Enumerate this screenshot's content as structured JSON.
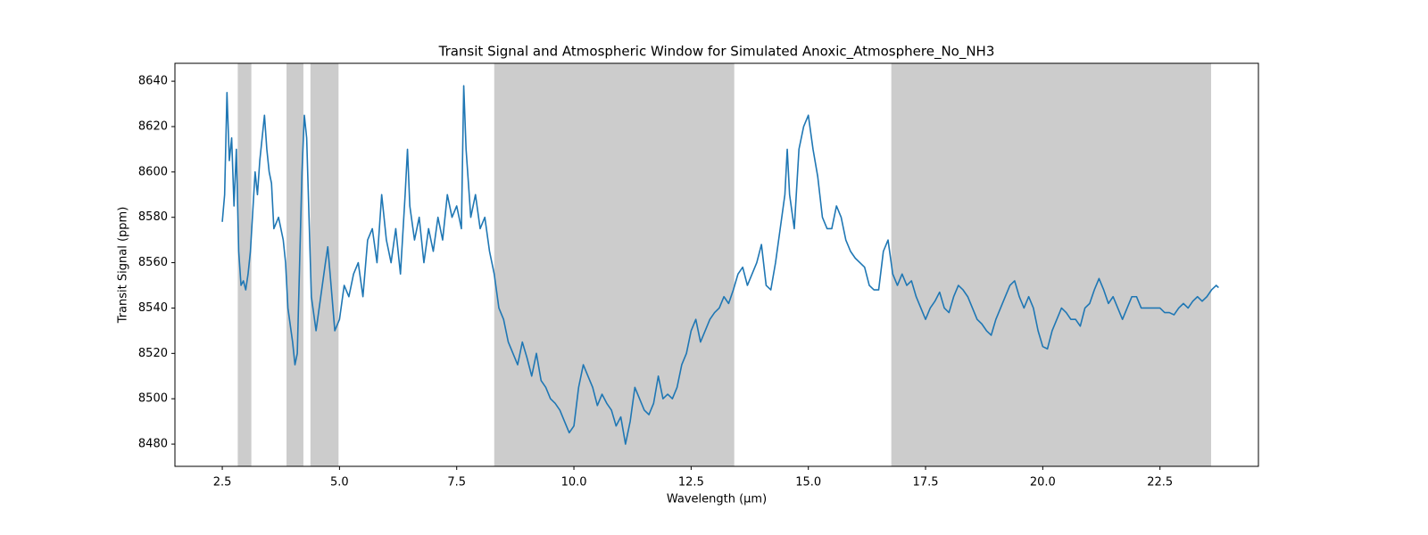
{
  "chart_data": {
    "type": "line",
    "title": "Transit Signal and Atmospheric Window for Simulated Anoxic_Atmosphere_No_NH3",
    "x_label": "Wavelength (μm)",
    "y_label": "Transit Signal (ppm)",
    "color": "#1f77b4",
    "window_color": "#cccccc",
    "windows": [
      [
        2.83,
        3.12
      ],
      [
        3.87,
        4.23
      ],
      [
        4.38,
        4.98
      ],
      [
        8.3,
        13.42
      ],
      [
        16.77,
        23.59
      ]
    ],
    "xlim": [
      1.49,
      24.6
    ],
    "ylim": [
      8470.2,
      8647.9
    ],
    "xticks": [
      2.5,
      {
        "value": 5,
        "label": "5.0"
      },
      7.5,
      {
        "value": 10,
        "label": "10.0"
      },
      12.5,
      {
        "value": 15,
        "label": "15.0"
      },
      17.5,
      {
        "value": 20,
        "label": "20.0"
      },
      22.5
    ],
    "yticks": [
      8480,
      8500,
      8520,
      8540,
      8560,
      8580,
      8600,
      8620,
      8640
    ],
    "x": [
      2.5,
      2.55,
      2.6,
      2.65,
      2.7,
      2.75,
      2.8,
      2.85,
      2.9,
      2.95,
      3.0,
      3.05,
      3.1,
      3.2,
      3.25,
      3.3,
      3.35,
      3.4,
      3.45,
      3.5,
      3.55,
      3.6,
      3.7,
      3.8,
      3.85,
      3.9,
      4.0,
      4.05,
      4.1,
      4.15,
      4.2,
      4.25,
      4.3,
      4.35,
      4.4,
      4.5,
      4.6,
      4.7,
      4.75,
      4.8,
      4.9,
      5.0,
      5.1,
      5.2,
      5.3,
      5.4,
      5.5,
      5.6,
      5.7,
      5.8,
      5.9,
      6.0,
      6.1,
      6.2,
      6.3,
      6.4,
      6.45,
      6.5,
      6.6,
      6.7,
      6.8,
      6.9,
      7.0,
      7.1,
      7.2,
      7.3,
      7.4,
      7.5,
      7.6,
      7.65,
      7.7,
      7.8,
      7.9,
      8.0,
      8.1,
      8.2,
      8.3,
      8.4,
      8.5,
      8.6,
      8.7,
      8.8,
      8.9,
      9.0,
      9.1,
      9.2,
      9.3,
      9.4,
      9.5,
      9.6,
      9.7,
      9.8,
      9.9,
      10.0,
      10.1,
      10.2,
      10.3,
      10.4,
      10.5,
      10.6,
      10.7,
      10.8,
      10.9,
      11.0,
      11.1,
      11.2,
      11.3,
      11.4,
      11.5,
      11.6,
      11.7,
      11.8,
      11.9,
      12.0,
      12.1,
      12.2,
      12.3,
      12.4,
      12.5,
      12.6,
      12.7,
      12.8,
      12.9,
      13.0,
      13.1,
      13.2,
      13.3,
      13.4,
      13.5,
      13.6,
      13.7,
      13.8,
      13.9,
      14.0,
      14.1,
      14.2,
      14.3,
      14.4,
      14.5,
      14.55,
      14.6,
      14.7,
      14.8,
      14.9,
      15.0,
      15.1,
      15.2,
      15.3,
      15.4,
      15.5,
      15.6,
      15.7,
      15.8,
      15.9,
      16.0,
      16.1,
      16.2,
      16.3,
      16.4,
      16.5,
      16.6,
      16.7,
      16.8,
      16.9,
      17.0,
      17.1,
      17.2,
      17.3,
      17.4,
      17.5,
      17.6,
      17.7,
      17.8,
      17.9,
      18.0,
      18.1,
      18.2,
      18.3,
      18.4,
      18.5,
      18.6,
      18.7,
      18.8,
      18.9,
      19.0,
      19.1,
      19.2,
      19.3,
      19.4,
      19.5,
      19.6,
      19.7,
      19.8,
      19.9,
      20.0,
      20.1,
      20.2,
      20.3,
      20.4,
      20.5,
      20.6,
      20.7,
      20.8,
      20.9,
      21.0,
      21.1,
      21.2,
      21.3,
      21.4,
      21.5,
      21.6,
      21.7,
      21.8,
      21.9,
      22.0,
      22.1,
      22.2,
      22.3,
      22.4,
      22.5,
      22.6,
      22.7,
      22.8,
      22.9,
      23.0,
      23.1,
      23.2,
      23.3,
      23.4,
      23.5,
      23.6,
      23.7,
      23.75
    ],
    "values": [
      8578,
      8590,
      8635,
      8605,
      8615,
      8585,
      8610,
      8565,
      8550,
      8552,
      8548,
      8555,
      8565,
      8600,
      8590,
      8605,
      8615,
      8625,
      8610,
      8600,
      8595,
      8575,
      8580,
      8570,
      8560,
      8540,
      8525,
      8515,
      8520,
      8560,
      8600,
      8625,
      8615,
      8580,
      8545,
      8530,
      8545,
      8560,
      8567,
      8555,
      8530,
      8535,
      8550,
      8545,
      8555,
      8560,
      8545,
      8570,
      8575,
      8560,
      8590,
      8570,
      8560,
      8575,
      8555,
      8590,
      8610,
      8585,
      8570,
      8580,
      8560,
      8575,
      8565,
      8580,
      8570,
      8590,
      8580,
      8585,
      8575,
      8638,
      8610,
      8580,
      8590,
      8575,
      8580,
      8565,
      8555,
      8540,
      8535,
      8525,
      8520,
      8515,
      8525,
      8518,
      8510,
      8520,
      8508,
      8505,
      8500,
      8498,
      8495,
      8490,
      8485,
      8488,
      8505,
      8515,
      8510,
      8505,
      8497,
      8502,
      8498,
      8495,
      8488,
      8492,
      8480,
      8490,
      8505,
      8500,
      8495,
      8493,
      8498,
      8510,
      8500,
      8502,
      8500,
      8505,
      8515,
      8520,
      8530,
      8535,
      8525,
      8530,
      8535,
      8538,
      8540,
      8545,
      8542,
      8548,
      8555,
      8558,
      8550,
      8555,
      8560,
      8568,
      8550,
      8548,
      8560,
      8575,
      8590,
      8610,
      8590,
      8575,
      8610,
      8620,
      8625,
      8610,
      8598,
      8580,
      8575,
      8575,
      8585,
      8580,
      8570,
      8565,
      8562,
      8560,
      8558,
      8550,
      8548,
      8548,
      8565,
      8570,
      8555,
      8550,
      8555,
      8550,
      8552,
      8545,
      8540,
      8535,
      8540,
      8543,
      8547,
      8540,
      8538,
      8545,
      8550,
      8548,
      8545,
      8540,
      8535,
      8533,
      8530,
      8528,
      8535,
      8540,
      8545,
      8550,
      8552,
      8545,
      8540,
      8545,
      8540,
      8530,
      8523,
      8522,
      8530,
      8535,
      8540,
      8538,
      8535,
      8535,
      8532,
      8540,
      8542,
      8548,
      8553,
      8548,
      8542,
      8545,
      8540,
      8535,
      8540,
      8545,
      8545,
      8540,
      8540,
      8540,
      8540,
      8540,
      8538,
      8538,
      8537,
      8540,
      8542,
      8540,
      8543,
      8545,
      8543,
      8545,
      8548,
      8550,
      8549
    ]
  }
}
